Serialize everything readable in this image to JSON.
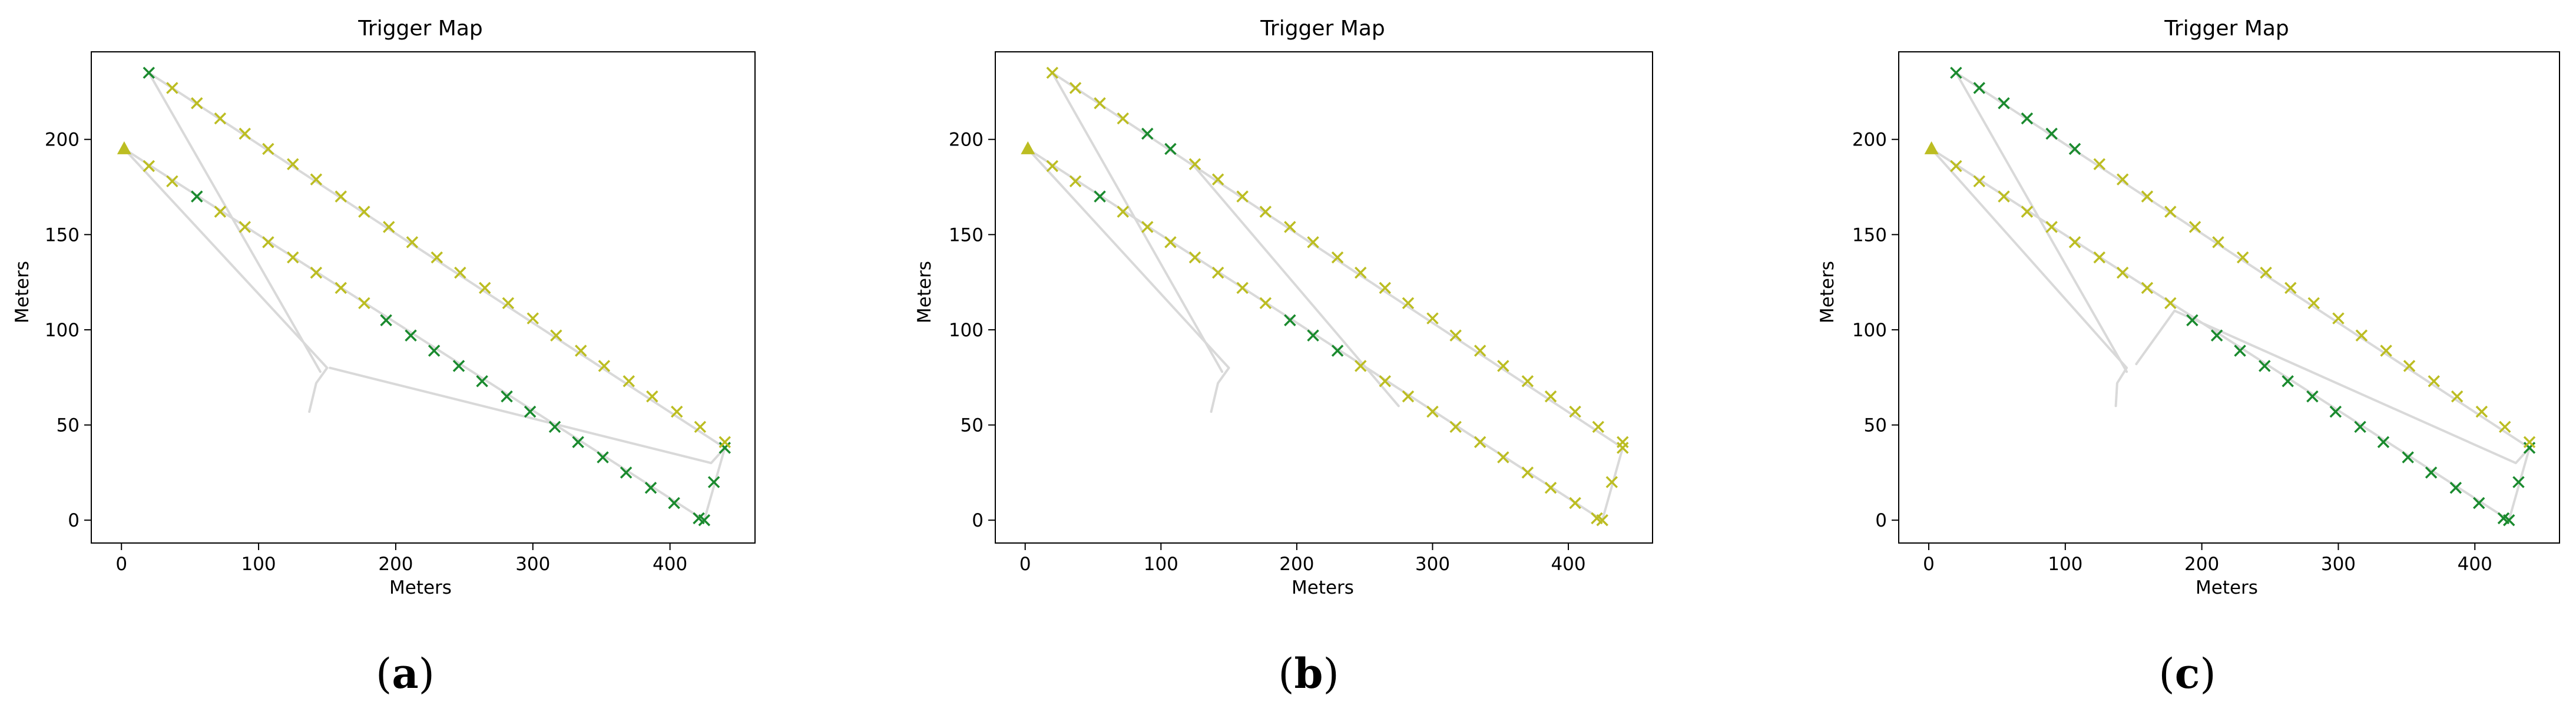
{
  "figure": {
    "panels": [
      {
        "caption_open": "(",
        "caption_letter": "a",
        "caption_close": ")"
      },
      {
        "caption_open": "(",
        "caption_letter": "b",
        "caption_close": ")"
      },
      {
        "caption_open": "(",
        "caption_letter": "c",
        "caption_close": ")"
      }
    ]
  },
  "colors": {
    "marker_yellow": "#bcbd22",
    "marker_green": "#1a8a2e",
    "path_gray": "#d9d9d9"
  },
  "chart_data": [
    {
      "type": "scatter",
      "title": "Trigger Map",
      "xlabel": "Meters",
      "ylabel": "Meters",
      "xlim": [
        -22,
        462
      ],
      "ylim": [
        -12,
        246
      ],
      "xticks": [
        0,
        100,
        200,
        300,
        400
      ],
      "yticks": [
        0,
        50,
        100,
        150,
        200
      ],
      "grid": false,
      "start_marker": {
        "x": 2,
        "y": 195,
        "shape": "triangle",
        "color": "yellow"
      },
      "path_lines": [
        [
          [
            2,
            195
          ],
          [
            150,
            80
          ],
          [
            142,
            72
          ],
          [
            137,
            57
          ]
        ],
        [
          [
            20,
            235
          ],
          [
            145,
            78
          ]
        ],
        [
          [
            2,
            195
          ],
          [
            425,
            0
          ],
          [
            440,
            38
          ],
          [
            20,
            235
          ]
        ],
        [
          [
            440,
            38
          ],
          [
            430,
            30
          ],
          [
            152,
            80
          ]
        ]
      ],
      "series": [
        {
          "color": "green",
          "points": [
            [
              20,
              235
            ],
            [
              55,
              170
            ],
            [
              193,
              105
            ],
            [
              211,
              97
            ],
            [
              228,
              89
            ],
            [
              246,
              81
            ],
            [
              263,
              73
            ],
            [
              281,
              65
            ],
            [
              298,
              57
            ],
            [
              316,
              49
            ],
            [
              333,
              41
            ],
            [
              351,
              33
            ],
            [
              368,
              25
            ],
            [
              386,
              17
            ],
            [
              403,
              9
            ],
            [
              421,
              1
            ],
            [
              425,
              0
            ],
            [
              432,
              20
            ],
            [
              440,
              38
            ]
          ]
        },
        {
          "color": "yellow",
          "points": [
            [
              37,
              227
            ],
            [
              55,
              219
            ],
            [
              72,
              211
            ],
            [
              90,
              203
            ],
            [
              107,
              195
            ],
            [
              125,
              187
            ],
            [
              142,
              179
            ],
            [
              160,
              170
            ],
            [
              177,
              162
            ],
            [
              195,
              154
            ],
            [
              212,
              146
            ],
            [
              230,
              138
            ],
            [
              247,
              130
            ],
            [
              265,
              122
            ],
            [
              282,
              114
            ],
            [
              300,
              106
            ],
            [
              317,
              97
            ],
            [
              335,
              89
            ],
            [
              352,
              81
            ],
            [
              370,
              73
            ],
            [
              387,
              65
            ],
            [
              405,
              57
            ],
            [
              422,
              49
            ],
            [
              440,
              41
            ],
            [
              20,
              186
            ],
            [
              37,
              178
            ],
            [
              72,
              162
            ],
            [
              90,
              154
            ],
            [
              107,
              146
            ],
            [
              125,
              138
            ],
            [
              142,
              130
            ],
            [
              160,
              122
            ],
            [
              177,
              114
            ]
          ]
        }
      ]
    },
    {
      "type": "scatter",
      "title": "Trigger Map",
      "xlabel": "Meters",
      "ylabel": "Meters",
      "xlim": [
        -22,
        462
      ],
      "ylim": [
        -12,
        246
      ],
      "xticks": [
        0,
        100,
        200,
        300,
        400
      ],
      "yticks": [
        0,
        50,
        100,
        150,
        200
      ],
      "grid": false,
      "start_marker": {
        "x": 2,
        "y": 195,
        "shape": "triangle",
        "color": "yellow"
      },
      "path_lines": [
        [
          [
            2,
            195
          ],
          [
            150,
            80
          ],
          [
            142,
            72
          ],
          [
            137,
            57
          ]
        ],
        [
          [
            20,
            235
          ],
          [
            145,
            78
          ]
        ],
        [
          [
            2,
            195
          ],
          [
            425,
            0
          ],
          [
            440,
            38
          ],
          [
            20,
            235
          ]
        ],
        [
          [
            122,
            188
          ],
          [
            275,
            60
          ]
        ]
      ],
      "series": [
        {
          "color": "green",
          "points": [
            [
              55,
              170
            ],
            [
              90,
              203
            ],
            [
              107,
              195
            ],
            [
              195,
              105
            ],
            [
              212,
              97
            ],
            [
              230,
              89
            ]
          ]
        },
        {
          "color": "yellow",
          "points": [
            [
              20,
              235
            ],
            [
              37,
              227
            ],
            [
              55,
              219
            ],
            [
              72,
              211
            ],
            [
              125,
              187
            ],
            [
              142,
              179
            ],
            [
              160,
              170
            ],
            [
              177,
              162
            ],
            [
              195,
              154
            ],
            [
              212,
              146
            ],
            [
              230,
              138
            ],
            [
              247,
              130
            ],
            [
              265,
              122
            ],
            [
              282,
              114
            ],
            [
              300,
              106
            ],
            [
              317,
              97
            ],
            [
              335,
              89
            ],
            [
              352,
              81
            ],
            [
              370,
              73
            ],
            [
              387,
              65
            ],
            [
              405,
              57
            ],
            [
              422,
              49
            ],
            [
              440,
              41
            ],
            [
              20,
              186
            ],
            [
              37,
              178
            ],
            [
              72,
              162
            ],
            [
              90,
              154
            ],
            [
              107,
              146
            ],
            [
              125,
              138
            ],
            [
              142,
              130
            ],
            [
              160,
              122
            ],
            [
              177,
              114
            ],
            [
              247,
              81
            ],
            [
              265,
              73
            ],
            [
              282,
              65
            ],
            [
              300,
              57
            ],
            [
              317,
              49
            ],
            [
              335,
              41
            ],
            [
              352,
              33
            ],
            [
              370,
              25
            ],
            [
              387,
              17
            ],
            [
              405,
              9
            ],
            [
              421,
              1
            ],
            [
              425,
              0
            ],
            [
              432,
              20
            ],
            [
              440,
              38
            ]
          ]
        }
      ]
    },
    {
      "type": "scatter",
      "title": "Trigger Map",
      "xlabel": "Meters",
      "ylabel": "Meters",
      "xlim": [
        -22,
        462
      ],
      "ylim": [
        -12,
        246
      ],
      "xticks": [
        0,
        100,
        200,
        300,
        400
      ],
      "yticks": [
        0,
        50,
        100,
        150,
        200
      ],
      "grid": false,
      "start_marker": {
        "x": 2,
        "y": 195,
        "shape": "triangle",
        "color": "yellow"
      },
      "path_lines": [
        [
          [
            2,
            195
          ],
          [
            145,
            80
          ],
          [
            138,
            72
          ],
          [
            137,
            60
          ]
        ],
        [
          [
            20,
            235
          ],
          [
            145,
            78
          ]
        ],
        [
          [
            2,
            195
          ],
          [
            425,
            0
          ],
          [
            440,
            38
          ],
          [
            20,
            235
          ]
        ],
        [
          [
            440,
            38
          ],
          [
            430,
            30
          ],
          [
            180,
            110
          ],
          [
            152,
            82
          ]
        ]
      ],
      "series": [
        {
          "color": "green",
          "points": [
            [
              20,
              235
            ],
            [
              37,
              227
            ],
            [
              55,
              219
            ],
            [
              72,
              211
            ],
            [
              90,
              203
            ],
            [
              107,
              195
            ],
            [
              193,
              105
            ],
            [
              211,
              97
            ],
            [
              228,
              89
            ],
            [
              246,
              81
            ],
            [
              263,
              73
            ],
            [
              281,
              65
            ],
            [
              298,
              57
            ],
            [
              316,
              49
            ],
            [
              333,
              41
            ],
            [
              351,
              33
            ],
            [
              368,
              25
            ],
            [
              386,
              17
            ],
            [
              403,
              9
            ],
            [
              421,
              1
            ],
            [
              425,
              0
            ],
            [
              432,
              20
            ],
            [
              440,
              38
            ]
          ]
        },
        {
          "color": "yellow",
          "points": [
            [
              125,
              187
            ],
            [
              142,
              179
            ],
            [
              160,
              170
            ],
            [
              177,
              162
            ],
            [
              195,
              154
            ],
            [
              212,
              146
            ],
            [
              230,
              138
            ],
            [
              247,
              130
            ],
            [
              265,
              122
            ],
            [
              282,
              114
            ],
            [
              300,
              106
            ],
            [
              317,
              97
            ],
            [
              335,
              89
            ],
            [
              352,
              81
            ],
            [
              370,
              73
            ],
            [
              387,
              65
            ],
            [
              405,
              57
            ],
            [
              422,
              49
            ],
            [
              440,
              41
            ],
            [
              20,
              186
            ],
            [
              37,
              178
            ],
            [
              55,
              170
            ],
            [
              72,
              162
            ],
            [
              90,
              154
            ],
            [
              107,
              146
            ],
            [
              125,
              138
            ],
            [
              142,
              130
            ],
            [
              160,
              122
            ],
            [
              177,
              114
            ]
          ]
        }
      ]
    }
  ]
}
